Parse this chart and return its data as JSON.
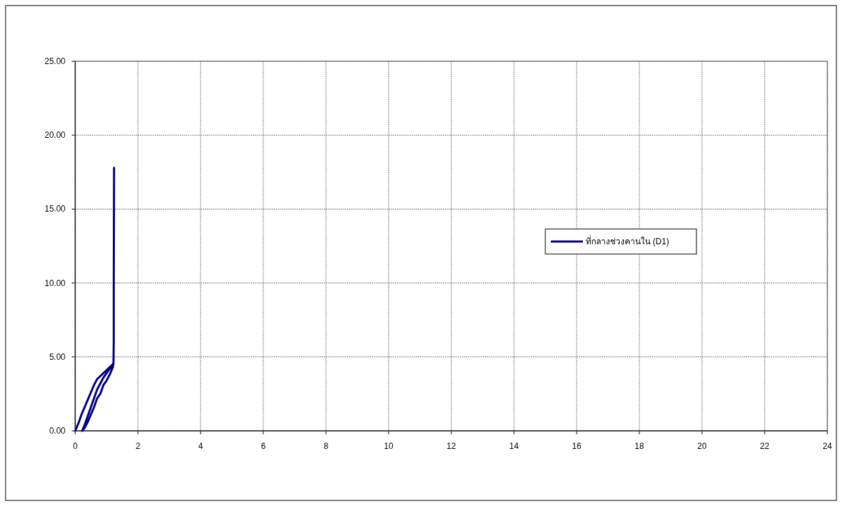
{
  "chart_data": {
    "type": "line",
    "grid": true,
    "legend": "right",
    "line_style": "solid",
    "marker": "none",
    "xlim": [
      0,
      24
    ],
    "xticks": [
      0,
      2,
      4,
      6,
      8,
      10,
      12,
      14,
      16,
      18,
      20,
      22,
      24
    ],
    "ylim": [
      0,
      25
    ],
    "yticks": [
      {
        "value": 0,
        "label": "0.00"
      },
      {
        "value": 5,
        "label": "5.00"
      },
      {
        "value": 10,
        "label": "10.00"
      },
      {
        "value": 15,
        "label": "15.00"
      },
      {
        "value": 20,
        "label": "20.00"
      },
      {
        "value": 25,
        "label": "25.00"
      }
    ],
    "series": [
      {
        "name": "ที่กลางช่วงคานใน (D1)",
        "color": "#000080",
        "x": [
          0,
          0.1,
          0.2,
          0.3,
          0.4,
          0.5,
          0.6,
          0.7,
          0.8,
          0.9,
          1.0,
          1.1,
          1.2,
          1.22,
          1.2,
          1.1,
          1.0,
          0.9,
          0.8,
          0.7,
          0.6,
          0.5,
          0.4,
          0.3,
          0.22,
          0.3,
          0.4,
          0.5,
          0.6,
          0.7,
          0.8,
          0.9,
          1.0,
          1.1,
          1.22,
          1.23,
          1.23,
          1.24
        ],
        "values": [
          0,
          0.5,
          1.1,
          1.6,
          2.1,
          2.6,
          3.1,
          3.5,
          3.7,
          3.9,
          4.1,
          4.3,
          4.5,
          4.6,
          4.3,
          3.8,
          3.4,
          3.1,
          2.5,
          2.2,
          1.6,
          1.1,
          0.6,
          0.2,
          0,
          0.4,
          1.0,
          1.6,
          2.2,
          2.8,
          3.2,
          3.6,
          3.9,
          4.2,
          4.5,
          6.0,
          10.0,
          17.8
        ]
      }
    ]
  }
}
